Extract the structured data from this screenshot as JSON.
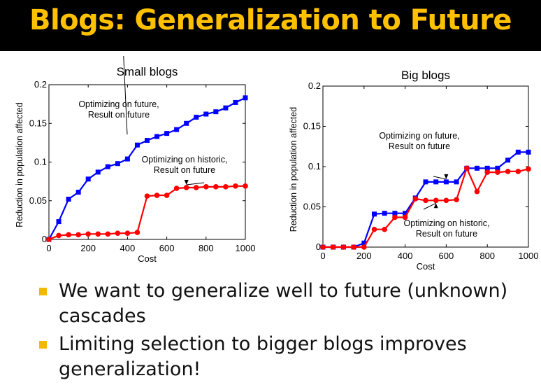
{
  "slide": {
    "title": "Blogs: Generalization to Future",
    "bullets": [
      "We want to generalize well to future (unknown) cascades",
      "Limiting selection to bigger blogs improves generalization!"
    ]
  },
  "colors": {
    "title": "#ffc000",
    "bullet": "#f5b800",
    "future": "#0000ff",
    "historic": "#ff0000"
  },
  "chart_data": [
    {
      "type": "line",
      "title": "Small blogs",
      "xlabel": "Cost",
      "ylabel": "Reduction in population affected",
      "xlim": [
        0,
        1000
      ],
      "ylim": [
        0,
        0.2
      ],
      "xticks": [
        "0",
        "200",
        "400",
        "600",
        "800",
        "1000"
      ],
      "yticks": [
        "0",
        "0.05",
        "0.1",
        "0.15",
        "0.2"
      ],
      "x": [
        0,
        50,
        100,
        150,
        200,
        250,
        300,
        350,
        400,
        450,
        500,
        550,
        600,
        650,
        700,
        750,
        800,
        850,
        900,
        950,
        1000
      ],
      "series": [
        {
          "name": "Optimizing on future, Result on future",
          "color": "#0000ff",
          "marker": "square",
          "values": [
            0,
            0.023,
            0.052,
            0.061,
            0.078,
            0.087,
            0.094,
            0.098,
            0.104,
            0.122,
            0.128,
            0.133,
            0.137,
            0.142,
            0.15,
            0.158,
            0.162,
            0.165,
            0.17,
            0.177,
            0.183
          ]
        },
        {
          "name": "Optimizing on historic, Result on future",
          "color": "#ff0000",
          "marker": "circle",
          "values": [
            0,
            0.005,
            0.006,
            0.006,
            0.007,
            0.007,
            0.007,
            0.008,
            0.008,
            0.009,
            0.056,
            0.057,
            0.057,
            0.066,
            0.067,
            0.067,
            0.068,
            0.068,
            0.068,
            0.069,
            0.069
          ]
        }
      ],
      "annotations": [
        {
          "lines": [
            "Optimizing on future,",
            "Result on future"
          ],
          "series": 0,
          "x": 380
        },
        {
          "lines": [
            "Optimizing on historic,",
            "Result on future"
          ],
          "series": 1,
          "x": 700
        }
      ]
    },
    {
      "type": "line",
      "title": "Big blogs",
      "xlabel": "Cost",
      "ylabel": "Reduction in population affected",
      "xlim": [
        0,
        1000
      ],
      "ylim": [
        0,
        0.2
      ],
      "xticks": [
        "0",
        "200",
        "400",
        "600",
        "800",
        "1000"
      ],
      "yticks": [
        "0",
        "0.05",
        "0.1",
        "0.15",
        "0.2"
      ],
      "x": [
        0,
        50,
        100,
        150,
        200,
        250,
        300,
        350,
        400,
        450,
        500,
        550,
        600,
        650,
        700,
        750,
        800,
        850,
        900,
        950,
        1000
      ],
      "series": [
        {
          "name": "Optimizing on future, Result on future",
          "color": "#0000ff",
          "marker": "square",
          "values": [
            0,
            0,
            0,
            0,
            0.005,
            0.041,
            0.042,
            0.042,
            0.042,
            0.061,
            0.081,
            0.081,
            0.081,
            0.081,
            0.098,
            0.098,
            0.098,
            0.098,
            0.108,
            0.118,
            0.118
          ]
        },
        {
          "name": "Optimizing on historic, Result on future",
          "color": "#ff0000",
          "marker": "circle",
          "values": [
            0,
            0,
            0,
            0,
            0,
            0.022,
            0.022,
            0.037,
            0.037,
            0.06,
            0.058,
            0.058,
            0.058,
            0.059,
            0.098,
            0.069,
            0.093,
            0.093,
            0.094,
            0.094,
            0.097
          ]
        }
      ],
      "annotations": [
        {
          "lines": [
            "Optimizing on future,",
            "Result on future"
          ],
          "series": 0,
          "x": 600
        },
        {
          "lines": [
            "Optimizing on historic,",
            "Result on future"
          ],
          "series": 1,
          "x": 550
        }
      ]
    }
  ]
}
